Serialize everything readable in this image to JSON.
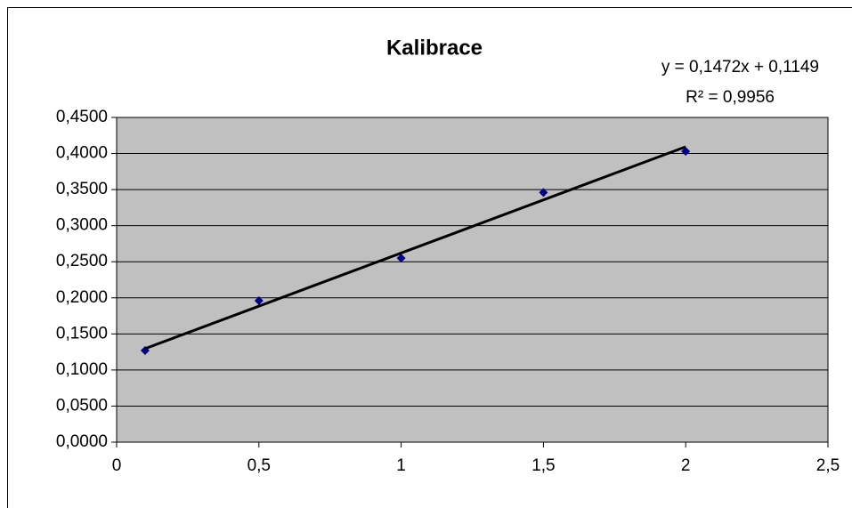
{
  "chart_data": {
    "type": "scatter",
    "title": "Kalibrace",
    "annotations": [
      "y = 0,1472x + 0,1149",
      "R² = 0,9956"
    ],
    "x": [
      0.1,
      0.5,
      1,
      1.5,
      2
    ],
    "series": [
      {
        "color": "#000080",
        "values": [
          0.127,
          0.196,
          0.255,
          0.346,
          0.403
        ]
      }
    ],
    "trendline": {
      "slope": 0.1472,
      "intercept": 0.1149,
      "color": "#000000"
    },
    "xlim": [
      0,
      2.5
    ],
    "xticks": [
      0,
      {
        "value": 0.5,
        "label": "0,5"
      },
      1,
      {
        "value": 1.5,
        "label": "1,5"
      },
      2,
      {
        "value": 2.5,
        "label": "2,5"
      }
    ],
    "ylim": [
      0,
      0.45
    ],
    "yticks": [
      {
        "value": 0,
        "label": "0,0000"
      },
      {
        "value": 0.05,
        "label": "0,0500"
      },
      {
        "value": 0.1,
        "label": "0,1000"
      },
      {
        "value": 0.15,
        "label": "0,1500"
      },
      {
        "value": 0.2,
        "label": "0,2000"
      },
      {
        "value": 0.25,
        "label": "0,2500"
      },
      {
        "value": 0.3,
        "label": "0,3000"
      },
      {
        "value": 0.35,
        "label": "0,3500"
      },
      {
        "value": 0.4,
        "label": "0,4000"
      },
      {
        "value": 0.45,
        "label": "0,4500"
      }
    ],
    "grid": true,
    "plot_background": "#c0c0c0"
  }
}
